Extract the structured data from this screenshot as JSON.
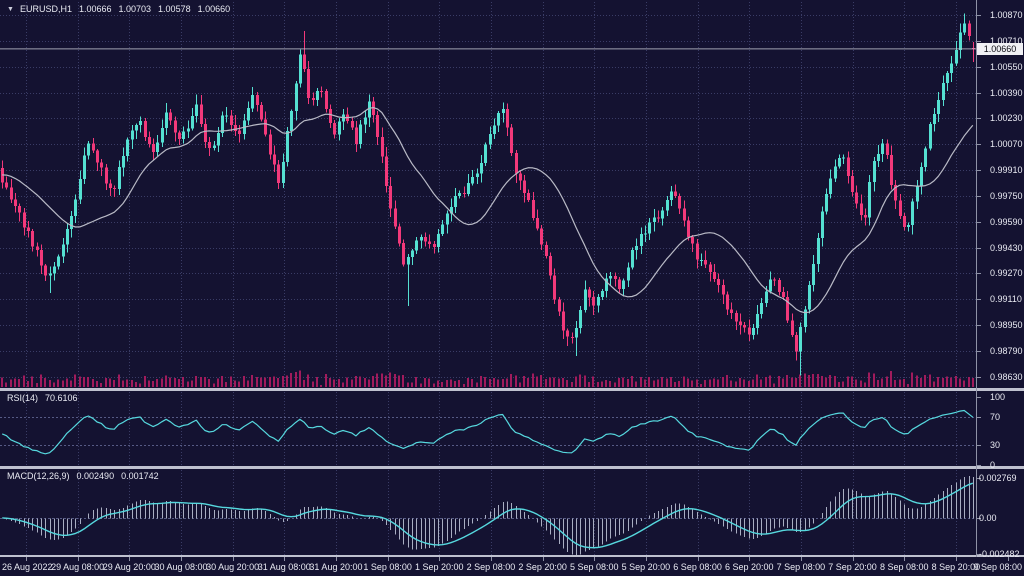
{
  "window": {
    "symbol_label": "EURUSD,H1",
    "ohlc": {
      "open": "1.00666",
      "high": "1.00703",
      "low": "1.00578",
      "close": "1.00660"
    }
  },
  "chart_data": {
    "type": "candlestick",
    "symbol": "EURUSD",
    "timeframe": "H1",
    "title": "EURUSD,H1 1.00666 1.00703 1.00578 1.00660",
    "candle_count": 226,
    "current_price": "1.00660",
    "current_price_value": 1.0066,
    "price_axis_ticks": [
      "1.00870",
      "1.00710",
      "1.00550",
      "1.00390",
      "1.00230",
      "1.00070",
      "0.99910",
      "0.99750",
      "0.99590",
      "0.99430",
      "0.99270",
      "0.99110",
      "0.98950",
      "0.98790",
      "0.98630"
    ],
    "time_axis_ticks": [
      "26 Aug 2022",
      "29 Aug 08:00",
      "29 Aug 20:00",
      "30 Aug 08:00",
      "30 Aug 20:00",
      "31 Aug 08:00",
      "31 Aug 20:00",
      "1 Sep 08:00",
      "1 Sep 20:00",
      "2 Sep 08:00",
      "2 Sep 20:00",
      "5 Sep 08:00",
      "5 Sep 20:00",
      "6 Sep 08:00",
      "6 Sep 20:00",
      "7 Sep 08:00",
      "7 Sep 20:00",
      "8 Sep 08:00",
      "8 Sep 20:00",
      "9 Sep 08:00"
    ],
    "visible_price_range": [
      0.9858,
      1.00915
    ],
    "overlay_ma": {
      "type": "sma",
      "period": 20
    },
    "close_keyframes": [
      [
        0,
        0.9988
      ],
      [
        14,
        0.997
      ],
      [
        32,
        0.9945
      ],
      [
        48,
        0.9925
      ],
      [
        60,
        0.9938
      ],
      [
        72,
        0.9965
      ],
      [
        88,
        1.0008
      ],
      [
        100,
        0.9993
      ],
      [
        112,
        0.9975
      ],
      [
        126,
        1.001
      ],
      [
        140,
        1.0022
      ],
      [
        152,
        0.9998
      ],
      [
        166,
        1.0025
      ],
      [
        180,
        1.0008
      ],
      [
        196,
        1.003
      ],
      [
        210,
        1.0
      ],
      [
        224,
        1.003
      ],
      [
        238,
        1.0013
      ],
      [
        252,
        1.0038
      ],
      [
        264,
        1.0018
      ],
      [
        278,
        0.9982
      ],
      [
        290,
        1.0024
      ],
      [
        301,
        1.0066
      ],
      [
        310,
        1.0028
      ],
      [
        320,
        1.0046
      ],
      [
        332,
        1.0012
      ],
      [
        344,
        1.0026
      ],
      [
        356,
        1.0008
      ],
      [
        369,
        1.0036
      ],
      [
        381,
        1.0003
      ],
      [
        393,
        0.9958
      ],
      [
        404,
        0.9934
      ],
      [
        419,
        0.995
      ],
      [
        433,
        0.994
      ],
      [
        449,
        0.9968
      ],
      [
        463,
        0.9977
      ],
      [
        477,
        0.999
      ],
      [
        491,
        1.0016
      ],
      [
        504,
        1.003
      ],
      [
        513,
        0.9992
      ],
      [
        526,
        0.9974
      ],
      [
        539,
        0.9952
      ],
      [
        551,
        0.9922
      ],
      [
        563,
        0.9893
      ],
      [
        573,
        0.9884
      ],
      [
        583,
        0.9916
      ],
      [
        594,
        0.9906
      ],
      [
        607,
        0.9926
      ],
      [
        620,
        0.992
      ],
      [
        634,
        0.9942
      ],
      [
        647,
        0.9956
      ],
      [
        660,
        0.9962
      ],
      [
        673,
        0.9979
      ],
      [
        684,
        0.9958
      ],
      [
        697,
        0.9938
      ],
      [
        712,
        0.9928
      ],
      [
        724,
        0.991
      ],
      [
        737,
        0.9893
      ],
      [
        750,
        0.989
      ],
      [
        762,
        0.9908
      ],
      [
        772,
        0.993
      ],
      [
        784,
        0.9908
      ],
      [
        796,
        0.9878
      ],
      [
        807,
        0.9912
      ],
      [
        820,
        0.9958
      ],
      [
        832,
        0.9988
      ],
      [
        842,
        1.0002
      ],
      [
        853,
        0.9974
      ],
      [
        864,
        0.996
      ],
      [
        874,
        1.0
      ],
      [
        884,
        1.0006
      ],
      [
        895,
        0.9972
      ],
      [
        906,
        0.995
      ],
      [
        916,
        0.998
      ],
      [
        926,
        1.0008
      ],
      [
        936,
        1.0032
      ],
      [
        946,
        1.0048
      ],
      [
        956,
        1.0068
      ],
      [
        963,
        1.0084
      ],
      [
        969,
        1.0076
      ],
      [
        975,
        1.0066
      ]
    ],
    "spike_wicks": [
      [
        48,
        "low",
        0.9915
      ],
      [
        301,
        "high",
        1.0077
      ],
      [
        404,
        "low",
        0.9907
      ],
      [
        573,
        "low",
        0.9876
      ],
      [
        796,
        "low",
        0.9864
      ],
      [
        963,
        "high",
        1.0088
      ]
    ],
    "last_candle": {
      "open": 1.00666,
      "high": 1.00703,
      "low": 1.00578,
      "close": 1.0066
    },
    "panes": [
      {
        "name": "RSI",
        "label": "RSI(14)",
        "current_value": "70.6106",
        "scale_ticks": [
          "100",
          "70",
          "30",
          "0"
        ],
        "level_lines": [
          70,
          30
        ],
        "range": [
          0,
          100
        ]
      },
      {
        "name": "MACD",
        "label": "MACD(12,26,9)",
        "main_value": "0.002490",
        "signal_value": "0.001742",
        "scale_ticks": [
          "0.002769",
          "0.00",
          "-0.002482"
        ],
        "zero_level": "0.00",
        "range": [
          -0.002482,
          0.002769
        ]
      }
    ]
  },
  "colors": {
    "background": "#141231",
    "bull": "#55e0d2",
    "bear": "#f2397a",
    "volume": "#a11b5c",
    "ma_line": "#b9bac6",
    "indicator_line": "#56d8de",
    "macd_histogram": "#a9aec2",
    "axis_text": "#e9eaf2",
    "grid": "#3a3c66",
    "level_line": "#565a85",
    "separator": "#bfc1cf",
    "axis_border": "#8f92a6",
    "current_price_line": "#c5c7d2",
    "current_price_label_bg": "#f0f0f4",
    "current_price_label_text": "#0a0a12"
  }
}
